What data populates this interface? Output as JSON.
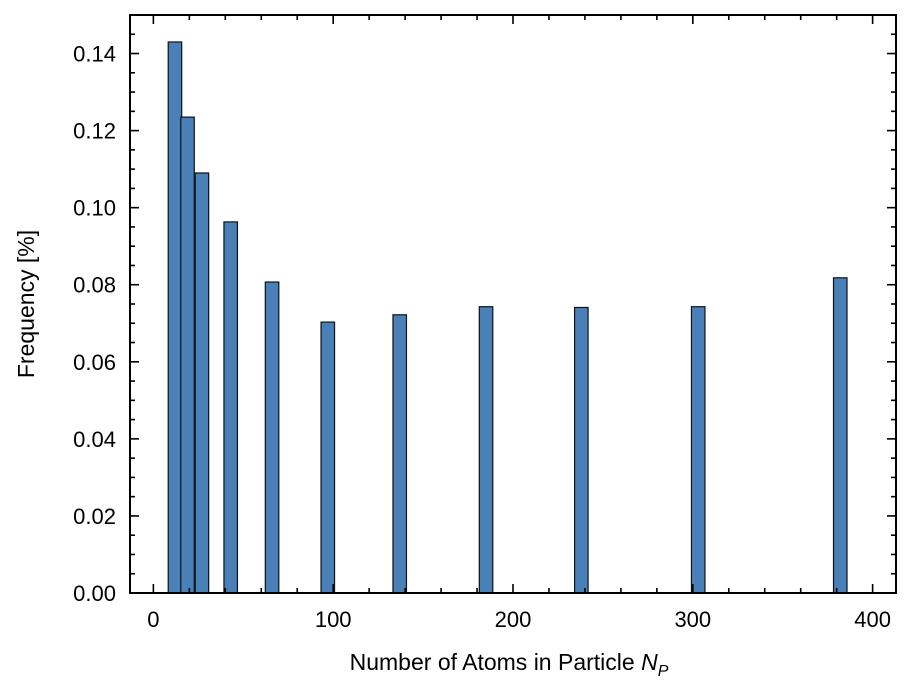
{
  "chart_data": {
    "type": "bar",
    "xlabel": "Number of Atoms in Particle ",
    "xlabel_var": "N",
    "xlabel_sub": "P",
    "ylabel": "Frequency [%]",
    "xlim": [
      -13,
      413
    ],
    "ylim": [
      0.0,
      0.15
    ],
    "x_major_ticks": [
      0,
      100,
      200,
      300,
      400
    ],
    "x_tick_labels": [
      "0",
      "100",
      "200",
      "300",
      "400"
    ],
    "x_minor_step": 20,
    "y_major_ticks": [
      0.0,
      0.02,
      0.04,
      0.06,
      0.08,
      0.1,
      0.12,
      0.14
    ],
    "y_tick_labels": [
      "0.00",
      "0.02",
      "0.04",
      "0.06",
      "0.08",
      "0.10",
      "0.12",
      "0.14"
    ],
    "y_minor_step": 0.005,
    "bar_width": 7.5,
    "bars": [
      {
        "x": 12,
        "value": 0.143
      },
      {
        "x": 19,
        "value": 0.1235
      },
      {
        "x": 27,
        "value": 0.109
      },
      {
        "x": 43,
        "value": 0.0963
      },
      {
        "x": 66,
        "value": 0.0807
      },
      {
        "x": 97,
        "value": 0.0703
      },
      {
        "x": 137,
        "value": 0.0722
      },
      {
        "x": 185,
        "value": 0.0743
      },
      {
        "x": 238,
        "value": 0.0741
      },
      {
        "x": 303,
        "value": 0.0743
      },
      {
        "x": 382,
        "value": 0.0818
      }
    ],
    "color": "#4a80b8",
    "grid": false,
    "legend": "none"
  }
}
